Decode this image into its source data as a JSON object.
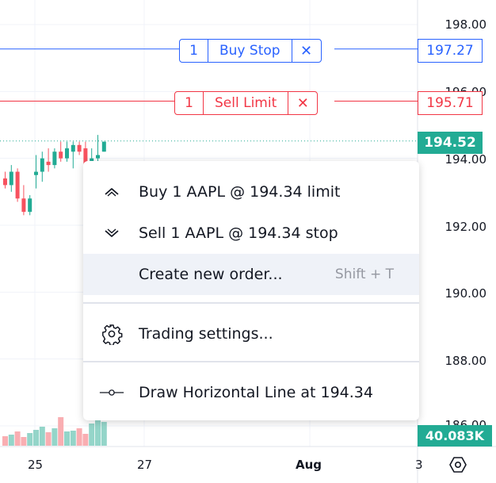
{
  "price_scale": {
    "labels": [
      "198.00",
      "196.00",
      "194.00",
      "192.00",
      "190.00",
      "188.00",
      "186.00"
    ]
  },
  "time_scale": {
    "labels": [
      "25",
      "27",
      "Aug",
      "3"
    ]
  },
  "orders": {
    "buy_stop": {
      "qty": "1",
      "label": "Buy Stop",
      "close": "✕",
      "price": "197.27",
      "color": "#2962ff"
    },
    "sell_limit": {
      "qty": "1",
      "label": "Sell Limit",
      "close": "✕",
      "price": "195.71",
      "color": "#f23645"
    }
  },
  "last_price": {
    "value": "194.52",
    "color": "#22ab94"
  },
  "volume": {
    "value": "40.083K"
  },
  "context_menu": {
    "items": [
      {
        "label": "Buy 1 AAPL @ 194.34 limit",
        "icon": "chevron-up-icon"
      },
      {
        "label": "Sell 1 AAPL @ 194.34 stop",
        "icon": "chevron-down-icon"
      },
      {
        "label": "Create new order...",
        "shortcut": "Shift + T"
      },
      {
        "label": "Trading settings...",
        "icon": "gear-icon"
      },
      {
        "label": "Draw Horizontal Line at 194.34",
        "icon": "horizontal-line-icon"
      }
    ]
  },
  "colors": {
    "up": "#22ab94",
    "down": "#f7525f",
    "vol_up": "#94d5c9",
    "vol_down": "#f9aeb2",
    "grid": "#f0f3fa"
  },
  "chart_data": {
    "type": "candlestick",
    "ylim": [
      185.4,
      198.6
    ],
    "candles": [
      {
        "o": 193.4,
        "h": 193.6,
        "l": 193.1,
        "c": 193.2
      },
      {
        "o": 193.2,
        "h": 193.8,
        "l": 193.0,
        "c": 193.6
      },
      {
        "o": 193.6,
        "h": 193.7,
        "l": 192.7,
        "c": 192.8
      },
      {
        "o": 192.8,
        "h": 193.2,
        "l": 192.3,
        "c": 192.4
      },
      {
        "o": 192.4,
        "h": 192.9,
        "l": 192.3,
        "c": 192.8
      },
      {
        "o": 193.5,
        "h": 194.1,
        "l": 193.1,
        "c": 193.6
      },
      {
        "o": 193.6,
        "h": 194.2,
        "l": 193.3,
        "c": 194.0
      },
      {
        "o": 193.9,
        "h": 194.3,
        "l": 193.6,
        "c": 193.8
      },
      {
        "o": 193.8,
        "h": 194.3,
        "l": 193.7,
        "c": 194.2
      },
      {
        "o": 194.2,
        "h": 194.5,
        "l": 193.9,
        "c": 194.0
      },
      {
        "o": 194.0,
        "h": 194.5,
        "l": 193.9,
        "c": 194.3
      },
      {
        "o": 194.2,
        "h": 194.5,
        "l": 193.7,
        "c": 194.4
      },
      {
        "o": 194.4,
        "h": 194.5,
        "l": 194.1,
        "c": 194.2
      },
      {
        "o": 194.3,
        "h": 194.5,
        "l": 193.7,
        "c": 193.8
      },
      {
        "o": 193.9,
        "h": 194.3,
        "l": 193.9,
        "c": 194.0
      },
      {
        "o": 194.0,
        "h": 194.7,
        "l": 193.9,
        "c": 194.1
      },
      {
        "o": 194.2,
        "h": 194.5,
        "l": 194.2,
        "c": 194.5
      }
    ],
    "volumes": [
      12,
      14,
      18,
      11,
      16,
      20,
      24,
      17,
      22,
      36,
      18,
      19,
      22,
      15,
      28,
      34,
      30
    ]
  }
}
